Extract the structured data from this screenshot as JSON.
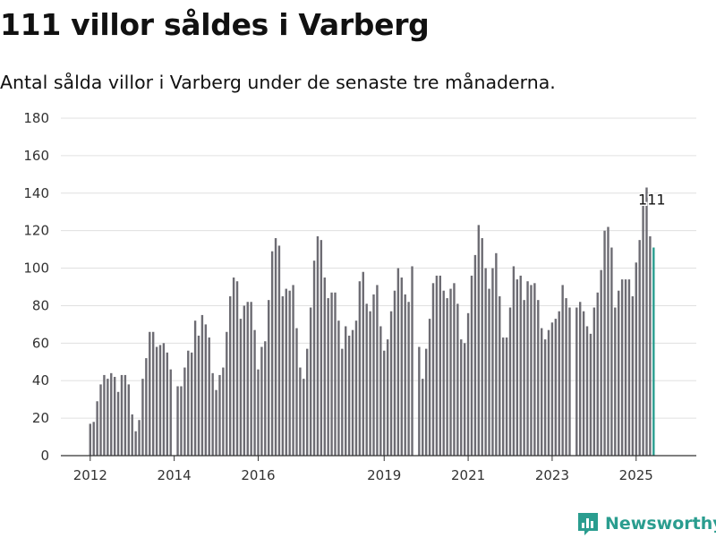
{
  "title": "111 villor såldes i Varberg",
  "subtitle": "Antal sålda villor i Varberg under de senaste tre månaderna.",
  "brand": {
    "name": "Newsworthy",
    "icon": "newsworthy-logo-icon",
    "color": "#2a9d8f"
  },
  "colors": {
    "bar": "#6d6c73",
    "highlight": "#2a9d8f",
    "grid": "#e0e0e0",
    "axis": "#333333"
  },
  "chart_data": {
    "type": "bar",
    "title": "",
    "xlabel": "",
    "ylabel": "",
    "ylim": [
      0,
      180
    ],
    "y_ticks": [
      0,
      20,
      40,
      60,
      80,
      100,
      120,
      140,
      160,
      180
    ],
    "grid": true,
    "x_tick_labels": [
      "2012",
      "2014",
      "2016",
      "2019",
      "2021",
      "2023",
      "2025"
    ],
    "x_tick_label_index": [
      0,
      24,
      48,
      84,
      108,
      132,
      156
    ],
    "start": "2012-01",
    "frequency": "monthly",
    "values": [
      17,
      18,
      29,
      38,
      43,
      41,
      44,
      42,
      34,
      43,
      43,
      38,
      22,
      13,
      19,
      41,
      52,
      66,
      66,
      58,
      59,
      60,
      55,
      46,
      0,
      37,
      37,
      47,
      56,
      55,
      72,
      64,
      75,
      70,
      63,
      44,
      35,
      43,
      47,
      66,
      85,
      95,
      93,
      73,
      80,
      82,
      82,
      67,
      46,
      58,
      61,
      83,
      109,
      116,
      112,
      85,
      89,
      88,
      91,
      68,
      47,
      41,
      57,
      79,
      104,
      117,
      115,
      95,
      84,
      87,
      87,
      72,
      57,
      69,
      64,
      67,
      72,
      93,
      98,
      81,
      77,
      86,
      91,
      69,
      56,
      62,
      77,
      88,
      100,
      95,
      86,
      82,
      101,
      0,
      58,
      41,
      57,
      73,
      92,
      96,
      96,
      88,
      84,
      89,
      92,
      81,
      62,
      60,
      76,
      96,
      107,
      123,
      116,
      100,
      89,
      100,
      108,
      85,
      63,
      63,
      79,
      101,
      94,
      96,
      83,
      93,
      91,
      92,
      83,
      68,
      62,
      67,
      71,
      73,
      77,
      91,
      84,
      79,
      0,
      79,
      82,
      77,
      69,
      65,
      79,
      87,
      99,
      120,
      122,
      111,
      79,
      88,
      94,
      94,
      94,
      85,
      103,
      115,
      135,
      143,
      117,
      111
    ],
    "highlight_index": 161,
    "annotation": {
      "text": "111",
      "index": 161
    }
  }
}
